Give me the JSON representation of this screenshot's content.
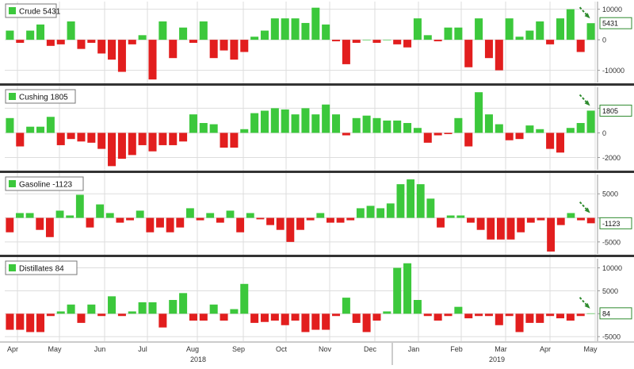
{
  "chart_data": [
    {
      "type": "bar",
      "legend": "Crude 5431",
      "last_value_label": "5431",
      "ylim": [
        -14000,
        12500
      ],
      "yticks": [
        10000,
        0,
        -10000
      ],
      "ytick_labels": [
        "10000",
        "0",
        "-10000"
      ],
      "values": [
        3000,
        -1000,
        3000,
        5000,
        -2000,
        -1500,
        6000,
        -3000,
        -1000,
        -4500,
        -6500,
        -10500,
        -1500,
        1500,
        -13000,
        6000,
        -6000,
        4000,
        -1000,
        6000,
        -6000,
        -3500,
        -6500,
        -4000,
        1000,
        3000,
        7000,
        7000,
        7000,
        5500,
        10500,
        5000,
        -500,
        -8000,
        -1000,
        0,
        -1000,
        0,
        -1500,
        -2500,
        7000,
        1500,
        -500,
        4000,
        4000,
        -9000,
        7000,
        -6000,
        -10000,
        7000,
        1000,
        3000,
        6000,
        -1500,
        7000,
        10000,
        -4000,
        5431
      ],
      "colors": {
        "positive": "#3cc83c",
        "negative": "#e21e1e"
      }
    },
    {
      "type": "bar",
      "legend": "Cushing 1805",
      "last_value_label": "1805",
      "ylim": [
        -3000,
        3700
      ],
      "yticks": [
        2000,
        0,
        -2000
      ],
      "ytick_labels": [
        "",
        "0",
        "-2000"
      ],
      "values": [
        1200,
        -1100,
        500,
        500,
        1300,
        -1000,
        -500,
        -700,
        -800,
        -1300,
        -2700,
        -2100,
        -1800,
        -1000,
        -1500,
        -1000,
        -1000,
        -700,
        1500,
        800,
        700,
        -1200,
        -1200,
        300,
        1600,
        1800,
        2000,
        1900,
        1500,
        2000,
        1500,
        2300,
        1500,
        -200,
        1200,
        1400,
        1200,
        1000,
        1000,
        800,
        400,
        -800,
        -200,
        -100,
        1200,
        -1100,
        3300,
        1500,
        700,
        -600,
        -500,
        600,
        300,
        -1300,
        -1600,
        400,
        800,
        1805
      ],
      "colors": {
        "positive": "#3cc83c",
        "negative": "#e21e1e"
      }
    },
    {
      "type": "bar",
      "legend": "Gasoline -1123",
      "last_value_label": "-1123",
      "ylim": [
        -7500,
        9000
      ],
      "yticks": [
        5000,
        0,
        -5000
      ],
      "ytick_labels": [
        "5000",
        "",
        "-5000"
      ],
      "values": [
        -3000,
        1000,
        1000,
        -2500,
        -4000,
        1500,
        500,
        4800,
        -2000,
        2800,
        1000,
        -1000,
        -500,
        1500,
        -3000,
        -2000,
        -3000,
        -2000,
        2000,
        -500,
        1000,
        -1000,
        1500,
        -3000,
        1000,
        -300,
        -1500,
        -2500,
        -5000,
        -2500,
        -500,
        1000,
        -1000,
        -1000,
        -500,
        2000,
        2500,
        2000,
        3000,
        7000,
        8000,
        7000,
        4000,
        -2000,
        500,
        500,
        -1000,
        -2500,
        -4500,
        -4500,
        -4500,
        -3000,
        -1000,
        -500,
        -7000,
        -1500,
        1000,
        -500,
        -1123
      ],
      "colors": {
        "positive": "#3cc83c",
        "negative": "#e21e1e"
      }
    },
    {
      "type": "bar",
      "legend": "Distillates 84",
      "last_value_label": "84",
      "ylim": [
        -6000,
        12000
      ],
      "yticks": [
        10000,
        5000,
        0,
        -5000
      ],
      "ytick_labels": [
        "10000",
        "5000",
        "",
        "-5000"
      ],
      "values": [
        -3500,
        -3500,
        -4000,
        -4000,
        -500,
        500,
        2000,
        -2000,
        2000,
        -500,
        3800,
        -500,
        500,
        2500,
        2500,
        -3000,
        3000,
        4500,
        -1500,
        -1500,
        2000,
        -1500,
        1000,
        6500,
        -2000,
        -1800,
        -1500,
        -2500,
        -1500,
        -4000,
        -3500,
        -3500,
        -500,
        3500,
        -2000,
        -4000,
        -1500,
        500,
        10000,
        11000,
        3000,
        -500,
        -1500,
        -500,
        1500,
        -1000,
        -500,
        -500,
        -2500,
        -500,
        -4000,
        -2000,
        -2000,
        -500,
        -1000,
        -1500,
        -500,
        84
      ],
      "colors": {
        "positive": "#3cc83c",
        "negative": "#e21e1e"
      }
    }
  ],
  "x_axis": {
    "month_labels": [
      "Apr",
      "May",
      "Jun",
      "Jul",
      "Aug",
      "Sep",
      "Oct",
      "Nov",
      "Dec",
      "Jan",
      "Feb",
      "Mar",
      "Apr",
      "May"
    ],
    "year_labels": [
      "2018",
      "2019"
    ]
  },
  "colors": {
    "positive_bar": "#3cc83c",
    "negative_bar": "#e21e1e",
    "grid": "#dddddd",
    "separator": "#333333",
    "arrow": "#2e8b2e"
  }
}
